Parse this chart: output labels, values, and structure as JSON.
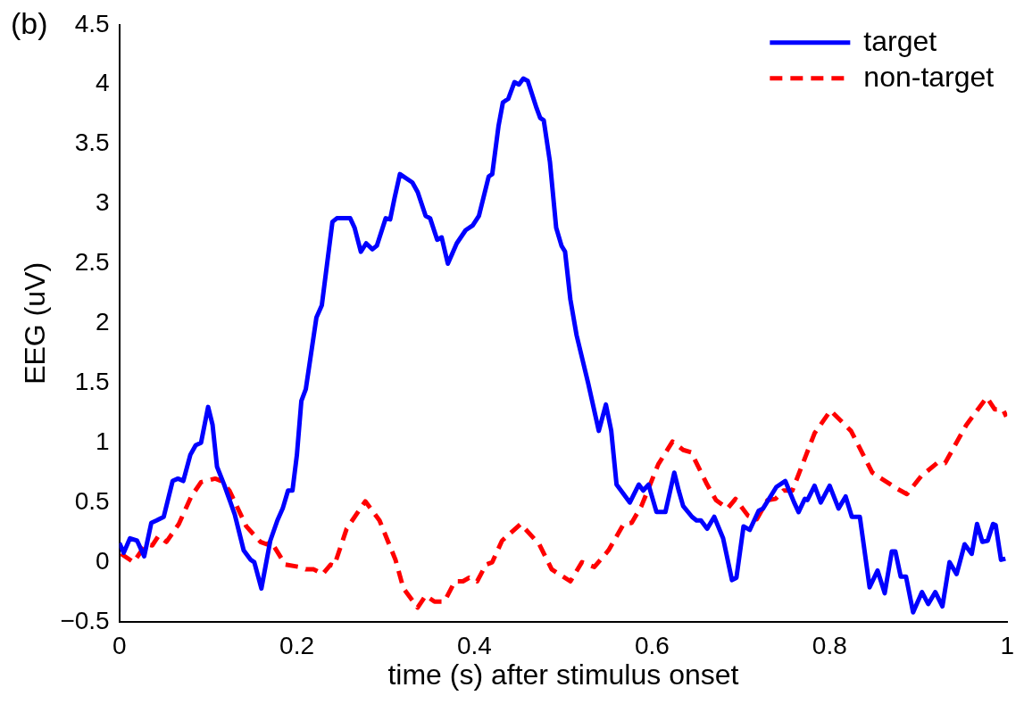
{
  "chart_data": {
    "type": "line",
    "xlabel": "time (s) after stimulus onset",
    "ylabel": "EEG (uV)",
    "annotations": [
      "(b)"
    ],
    "xlim": [
      0,
      1
    ],
    "xticks": [
      0,
      0.2,
      0.4,
      0.6,
      0.8,
      1
    ],
    "ylim": [
      -0.5,
      4.5
    ],
    "yticks": [
      {
        "value": -0.5,
        "label": "−0.5"
      },
      0,
      0.5,
      1,
      1.5,
      2,
      2.5,
      3,
      3.5,
      4,
      4.5
    ],
    "grid": false,
    "legend": "top right",
    "marker": "none",
    "series": [
      {
        "name": "target",
        "color": "#0000ff",
        "line_style": "solid",
        "x": [
          0,
          0.005,
          0.012,
          0.02,
          0.028,
          0.036,
          0.042,
          0.05,
          0.06,
          0.066,
          0.072,
          0.08,
          0.086,
          0.092,
          0.1,
          0.105,
          0.11,
          0.118,
          0.13,
          0.14,
          0.148,
          0.152,
          0.16,
          0.17,
          0.178,
          0.184,
          0.19,
          0.195,
          0.2,
          0.205,
          0.21,
          0.215,
          0.222,
          0.228,
          0.234,
          0.24,
          0.245,
          0.26,
          0.265,
          0.272,
          0.278,
          0.285,
          0.29,
          0.3,
          0.305,
          0.31,
          0.316,
          0.33,
          0.336,
          0.345,
          0.35,
          0.358,
          0.363,
          0.37,
          0.38,
          0.39,
          0.398,
          0.405,
          0.41,
          0.416,
          0.42,
          0.427,
          0.432,
          0.438,
          0.445,
          0.45,
          0.455,
          0.46,
          0.47,
          0.474,
          0.478,
          0.485,
          0.492,
          0.498,
          0.502,
          0.508,
          0.515,
          0.528,
          0.54,
          0.548,
          0.554,
          0.56,
          0.565,
          0.575,
          0.585,
          0.59,
          0.596,
          0.605,
          0.615,
          0.625,
          0.63,
          0.635,
          0.645,
          0.65,
          0.655,
          0.662,
          0.67,
          0.68,
          0.69,
          0.695,
          0.703,
          0.71,
          0.72,
          0.725,
          0.74,
          0.75,
          0.76,
          0.765,
          0.772,
          0.775,
          0.783,
          0.79,
          0.8,
          0.81,
          0.818,
          0.825,
          0.834,
          0.845,
          0.854,
          0.862,
          0.87,
          0.874,
          0.88,
          0.886,
          0.894,
          0.904,
          0.911,
          0.919,
          0.927,
          0.935,
          0.943,
          0.952,
          0.96,
          0.966,
          0.972,
          0.978,
          0.984,
          0.987,
          0.993,
          0.998
        ],
        "values": [
          0.16,
          0.08,
          0.2,
          0.18,
          0.05,
          0.33,
          0.35,
          0.38,
          0.68,
          0.7,
          0.68,
          0.9,
          0.98,
          1.0,
          1.3,
          1.15,
          0.8,
          0.65,
          0.4,
          0.1,
          0.02,
          0.0,
          -0.22,
          0.18,
          0.35,
          0.45,
          0.6,
          0.6,
          0.9,
          1.35,
          1.45,
          1.7,
          2.05,
          2.15,
          2.5,
          2.85,
          2.88,
          2.88,
          2.8,
          2.6,
          2.67,
          2.62,
          2.65,
          2.88,
          2.87,
          3.05,
          3.25,
          3.18,
          3.1,
          2.9,
          2.88,
          2.7,
          2.72,
          2.5,
          2.67,
          2.78,
          2.82,
          2.9,
          3.05,
          3.23,
          3.25,
          3.65,
          3.85,
          3.88,
          4.02,
          4.0,
          4.05,
          4.03,
          3.8,
          3.72,
          3.7,
          3.35,
          2.8,
          2.65,
          2.6,
          2.2,
          1.9,
          1.5,
          1.1,
          1.32,
          1.1,
          0.65,
          0.6,
          0.5,
          0.65,
          0.6,
          0.65,
          0.42,
          0.42,
          0.75,
          0.6,
          0.47,
          0.38,
          0.35,
          0.35,
          0.28,
          0.38,
          0.2,
          -0.15,
          -0.13,
          0.3,
          0.27,
          0.43,
          0.45,
          0.63,
          0.68,
          0.5,
          0.42,
          0.53,
          0.52,
          0.64,
          0.5,
          0.64,
          0.45,
          0.55,
          0.38,
          0.38,
          -0.21,
          -0.07,
          -0.26,
          0.09,
          0.09,
          -0.12,
          -0.12,
          -0.42,
          -0.25,
          -0.35,
          -0.25,
          -0.37,
          0,
          -0.1,
          0.15,
          0.07,
          0.32,
          0.17,
          0.18,
          0.32,
          0.31,
          0.02,
          0.03
        ]
      },
      {
        "name": "non-target",
        "color": "#ff0000",
        "line_style": "dashed",
        "x": [
          0.002,
          0.016,
          0.03,
          0.037,
          0.044,
          0.053,
          0.067,
          0.081,
          0.092,
          0.108,
          0.115,
          0.124,
          0.143,
          0.159,
          0.166,
          0.171,
          0.187,
          0.203,
          0.21,
          0.219,
          0.229,
          0.238,
          0.242,
          0.256,
          0.277,
          0.293,
          0.311,
          0.32,
          0.336,
          0.345,
          0.355,
          0.366,
          0.378,
          0.387,
          0.394,
          0.403,
          0.413,
          0.42,
          0.431,
          0.452,
          0.473,
          0.487,
          0.508,
          0.521,
          0.535,
          0.551,
          0.568,
          0.577,
          0.588,
          0.607,
          0.623,
          0.635,
          0.644,
          0.662,
          0.672,
          0.685,
          0.694,
          0.708,
          0.718,
          0.73,
          0.739,
          0.748,
          0.758,
          0.783,
          0.801,
          0.824,
          0.848,
          0.875,
          0.887,
          0.903,
          0.921,
          0.93,
          0.954,
          0.977,
          0.986,
          0.995,
          0.999
        ],
        "values": [
          0.07,
          0.0,
          0.15,
          0.14,
          0.22,
          0.17,
          0.32,
          0.55,
          0.67,
          0.7,
          0.68,
          0.6,
          0.3,
          0.17,
          0.15,
          0.17,
          -0.02,
          -0.04,
          -0.06,
          -0.06,
          -0.1,
          -0.02,
          -0.03,
          0.28,
          0.51,
          0.35,
          0.02,
          -0.22,
          -0.38,
          -0.28,
          -0.33,
          -0.33,
          -0.16,
          -0.16,
          -0.13,
          -0.16,
          -0.02,
          0,
          0.18,
          0.32,
          0.15,
          -0.06,
          -0.16,
          0,
          -0.04,
          0.1,
          0.32,
          0.33,
          0.47,
          0.82,
          1.01,
          0.94,
          0.92,
          0.65,
          0.52,
          0.45,
          0.53,
          0.39,
          0.36,
          0.52,
          0.53,
          0.6,
          0.6,
          1.08,
          1.27,
          1.1,
          0.75,
          0.62,
          0.57,
          0.72,
          0.83,
          0.83,
          1.15,
          1.38,
          1.28,
          1.28,
          1.22
        ]
      }
    ]
  }
}
